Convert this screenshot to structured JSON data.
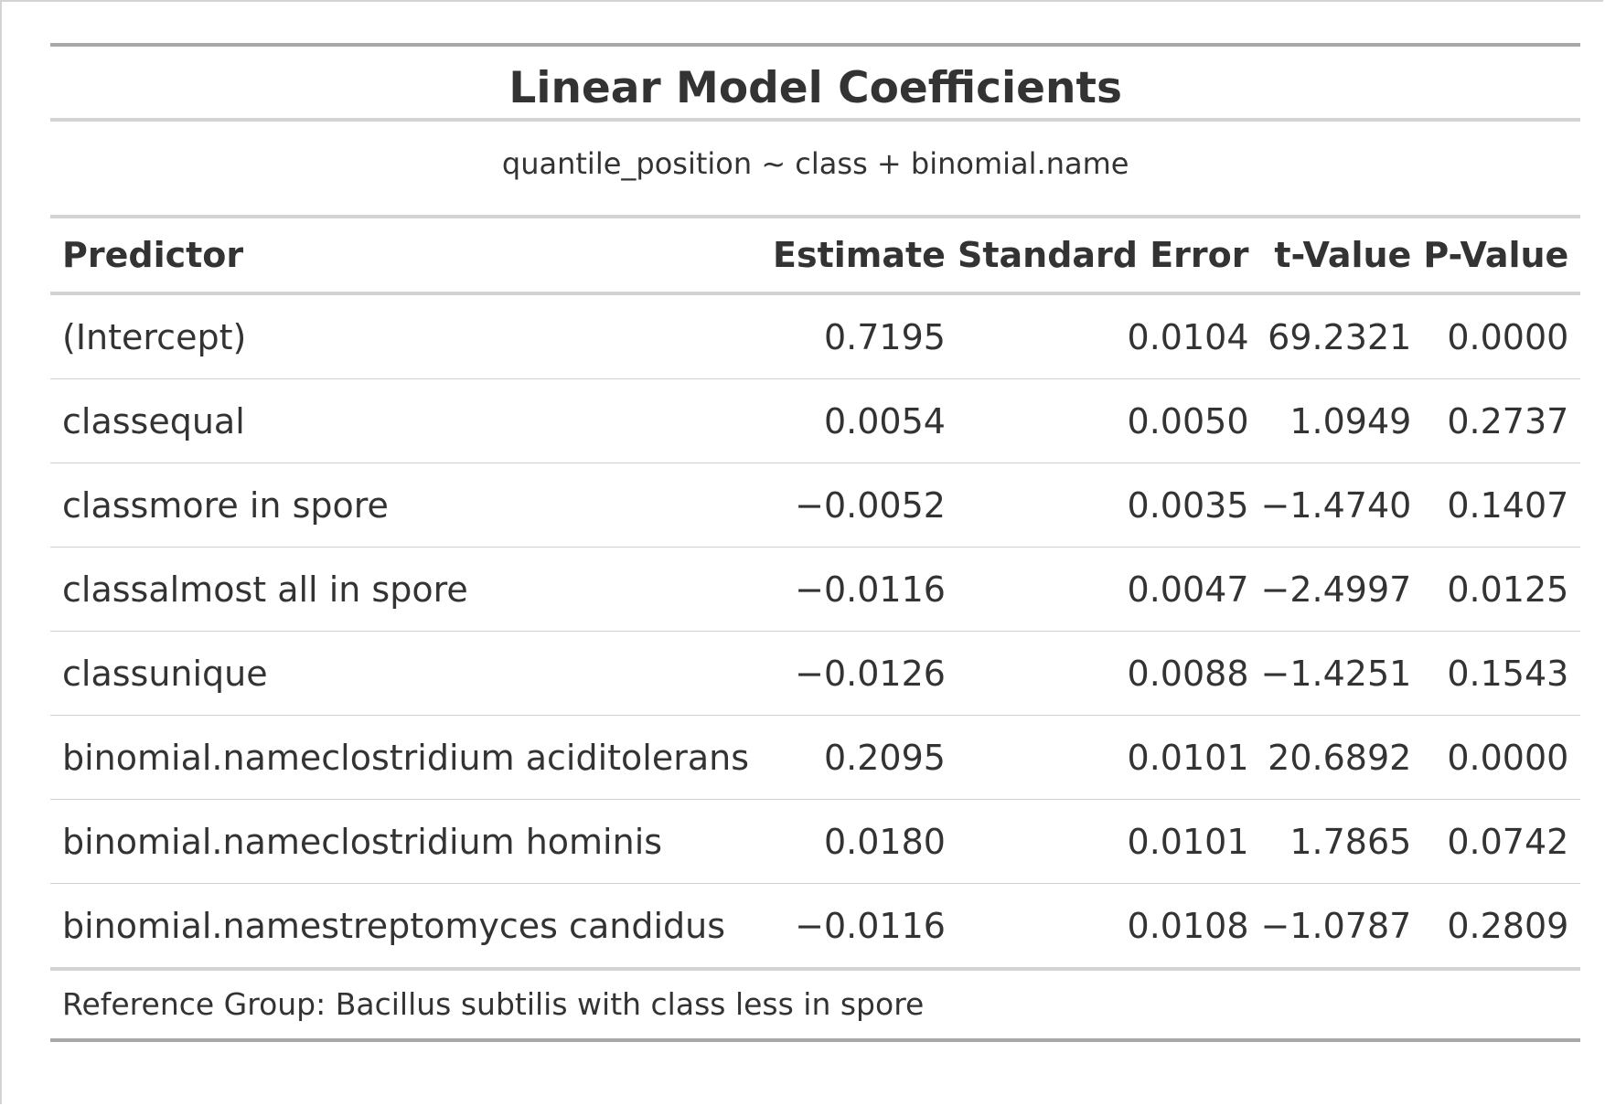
{
  "table": {
    "title": "Linear Model Coefficients",
    "subtitle": "quantile_position ~ class + binomial.name",
    "columns": [
      "Predictor",
      "Estimate",
      "Standard Error",
      "t-Value",
      "P-Value"
    ],
    "rows": [
      [
        "(Intercept)",
        "0.7195",
        "0.0104",
        "69.2321",
        "0.0000"
      ],
      [
        "classequal",
        "0.0054",
        "0.0050",
        "1.0949",
        "0.2737"
      ],
      [
        "classmore in spore",
        "−0.0052",
        "0.0035",
        "−1.4740",
        "0.1407"
      ],
      [
        "classalmost all in spore",
        "−0.0116",
        "0.0047",
        "−2.4997",
        "0.0125"
      ],
      [
        "classunique",
        "−0.0126",
        "0.0088",
        "−1.4251",
        "0.1543"
      ],
      [
        "binomial.nameclostridium aciditolerans",
        "0.2095",
        "0.0101",
        "20.6892",
        "0.0000"
      ],
      [
        "binomial.nameclostridium hominis",
        "0.0180",
        "0.0101",
        "1.7865",
        "0.0742"
      ],
      [
        "binomial.namestreptomyces candidus",
        "−0.0116",
        "0.0108",
        "−1.0787",
        "0.2809"
      ]
    ],
    "footnote": "Reference Group: Bacillus subtilis with class less in spore"
  }
}
